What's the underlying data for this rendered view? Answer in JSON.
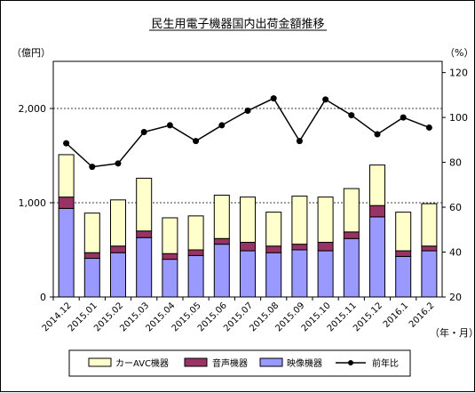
{
  "chart_data": {
    "type": "bar",
    "title": "民生用電子機器国内出荷金額推移",
    "categories": [
      "2014.12",
      "2015.01",
      "2015.02",
      "2015.03",
      "2015.04",
      "2015.05",
      "2015.06",
      "2015.07",
      "2015.08",
      "2015.09",
      "2015.10",
      "2015.11",
      "2015.12",
      "2016.1",
      "2016.2"
    ],
    "series": [
      {
        "name": "映像機器",
        "values": [
          940,
          410,
          470,
          630,
          400,
          440,
          560,
          490,
          470,
          500,
          490,
          620,
          850,
          430,
          490
        ],
        "color": "#9999ff"
      },
      {
        "name": "音声機器",
        "values": [
          120,
          60,
          70,
          70,
          60,
          60,
          60,
          90,
          70,
          60,
          90,
          70,
          120,
          60,
          50
        ],
        "color": "#993366"
      },
      {
        "name": "カーAVC機器",
        "values": [
          450,
          420,
          490,
          560,
          380,
          360,
          460,
          480,
          360,
          510,
          480,
          460,
          430,
          410,
          450
        ],
        "color": "#ffffcc"
      }
    ],
    "line_series": {
      "name": "前年比",
      "values": [
        88.5,
        78,
        79.5,
        93.5,
        96.5,
        89.5,
        96.5,
        103,
        108.5,
        89.5,
        108,
        101,
        92.5,
        100,
        95.5
      ]
    },
    "y_left": {
      "unit": "（億円）",
      "ticks": [
        "0",
        "1,000",
        "2,000"
      ],
      "ylim": [
        0,
        2500
      ]
    },
    "y_right": {
      "unit": "（%）",
      "ticks": [
        "20",
        "40",
        "60",
        "80",
        "100",
        "120"
      ],
      "ylim": [
        20,
        125
      ]
    },
    "x_unit": "（年・月）",
    "grid": true,
    "legend_position": "bottom"
  }
}
